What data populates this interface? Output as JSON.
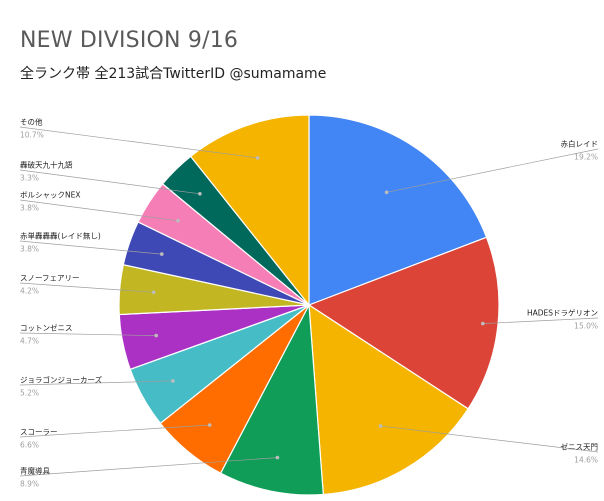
{
  "chart_data": {
    "type": "pie",
    "title": "NEW DIVISION 9/16",
    "subtitle": "全ランク帯 全213試合TwitterID @sumamame",
    "legend": "callout labels around pie",
    "slices": [
      {
        "label": "赤白レイド",
        "pct_text": "19.2%",
        "value": 19.2,
        "color": "#4285f4"
      },
      {
        "label": "HADESドラゲリオン",
        "pct_text": "15.0%",
        "value": 15.0,
        "color": "#db4437"
      },
      {
        "label": "ゼニス天門",
        "pct_text": "14.6%",
        "value": 14.6,
        "color": "#f4b400"
      },
      {
        "label": "青魔導具",
        "pct_text": "8.9%",
        "value": 8.9,
        "color": "#0f9d58"
      },
      {
        "label": "スコーラー",
        "pct_text": "6.6%",
        "value": 6.6,
        "color": "#ff6d00"
      },
      {
        "label": "ジョラゴンジョーカーズ",
        "pct_text": "5.2%",
        "value": 5.2,
        "color": "#46bdc6"
      },
      {
        "label": "コットンゼニス",
        "pct_text": "4.7%",
        "value": 4.7,
        "color": "#ab30c4"
      },
      {
        "label": "スノーフェアリー",
        "pct_text": "4.2%",
        "value": 4.2,
        "color": "#c2b722"
      },
      {
        "label": "赤単轟轟轟(レイド無し)",
        "pct_text": "3.8%",
        "value": 3.8,
        "color": "#3f49b5"
      },
      {
        "label": "ボルシャックNEX",
        "pct_text": "3.8%",
        "value": 3.8,
        "color": "#f57eb6"
      },
      {
        "label": "轟破天九十九語",
        "pct_text": "3.3%",
        "value": 3.3,
        "color": "#00695c"
      },
      {
        "label": "その他",
        "pct_text": "10.7%",
        "value": 10.7,
        "color": "#f4b400"
      }
    ]
  }
}
